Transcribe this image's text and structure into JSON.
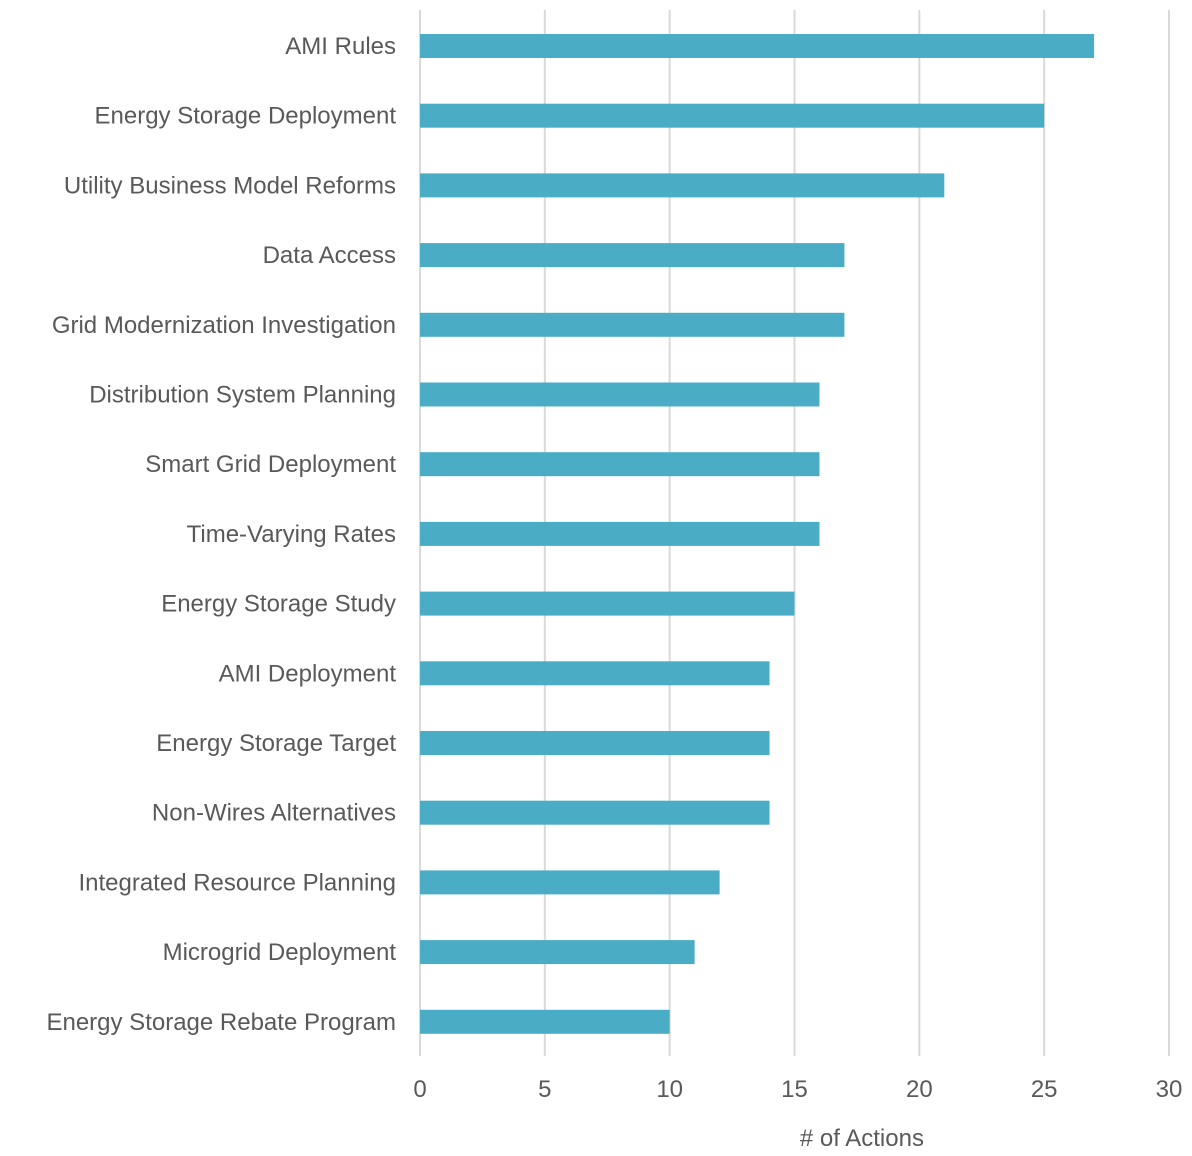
{
  "chart_data": {
    "type": "bar",
    "orientation": "horizontal",
    "title": "",
    "xlabel": "# of Actions",
    "ylabel": "",
    "xlim": [
      0,
      30
    ],
    "xticks": [
      0,
      5,
      10,
      15,
      20,
      25,
      30
    ],
    "grid": true,
    "legend": "none",
    "bar_color": "#4bacc6",
    "categories": [
      "AMI Rules",
      "Energy Storage Deployment",
      "Utility Business Model Reforms",
      "Data Access",
      "Grid Modernization Investigation",
      "Distribution System Planning",
      "Smart Grid Deployment",
      "Time-Varying Rates",
      "Energy Storage Study",
      "AMI Deployment",
      "Energy Storage Target",
      "Non-Wires Alternatives",
      "Integrated Resource Planning",
      "Microgrid Deployment",
      "Energy Storage Rebate Program"
    ],
    "values": [
      27,
      25,
      21,
      17,
      17,
      16,
      16,
      16,
      15,
      14,
      14,
      14,
      12,
      11,
      10
    ]
  }
}
